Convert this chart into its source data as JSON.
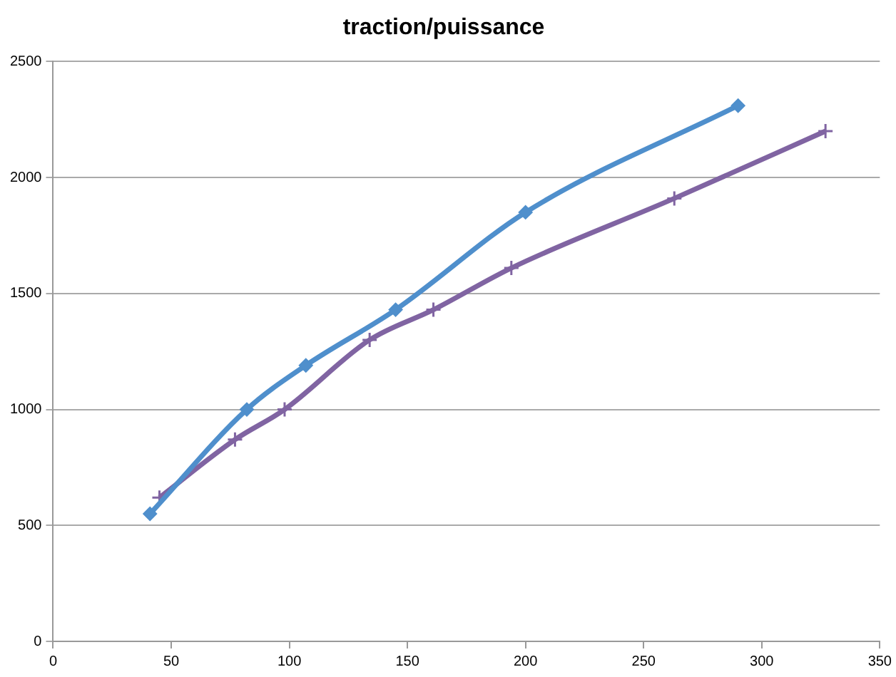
{
  "chart_data": {
    "type": "line",
    "title": "traction/puissance",
    "xlim": [
      0,
      350
    ],
    "xticks": [
      0,
      50,
      100,
      150,
      200,
      250,
      300,
      350
    ],
    "ylim": [
      0,
      2500
    ],
    "yticks": [
      0,
      500,
      1000,
      1500,
      2000,
      2500
    ],
    "grid": "y",
    "legend": false,
    "series": [
      {
        "color": "#4f8fcc",
        "marker": "diamond",
        "x": [
          41,
          82,
          107,
          145,
          200,
          290
        ],
        "values": [
          550,
          1000,
          1190,
          1430,
          1850,
          2310
        ]
      },
      {
        "color": "#8064a2",
        "marker": "cross",
        "x": [
          45,
          77,
          98,
          134,
          161,
          194,
          263,
          327
        ],
        "values": [
          620,
          870,
          1000,
          1300,
          1430,
          1610,
          1910,
          2200
        ]
      }
    ]
  }
}
